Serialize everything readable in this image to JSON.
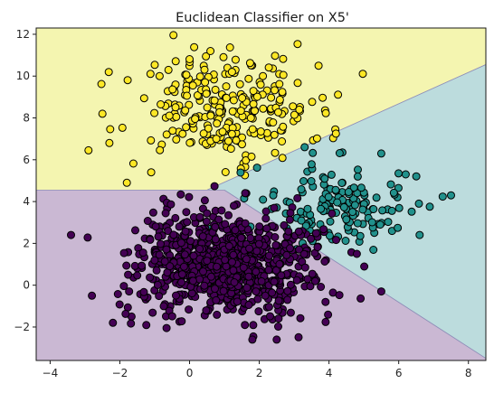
{
  "chart_data": {
    "type": "scatter",
    "title": "Euclidean Classifier on X5'",
    "xlabel": "",
    "ylabel": "",
    "xlim": [
      -4.4,
      8.5
    ],
    "ylim": [
      -3.6,
      12.3
    ],
    "xticks": [
      -4,
      -2,
      0,
      2,
      4,
      6,
      8
    ],
    "yticks": [
      -2,
      0,
      2,
      4,
      6,
      8,
      10,
      12
    ],
    "grid": false,
    "legend": "none",
    "regions": [
      {
        "class": "yellow",
        "color": "#f4f5b0",
        "polygon": [
          [
            -4.4,
            12.3
          ],
          [
            8.5,
            12.3
          ],
          [
            8.5,
            10.55
          ],
          [
            0.5,
            4.55
          ],
          [
            -4.4,
            4.55
          ]
        ]
      },
      {
        "class": "teal",
        "color": "#bcdcdd",
        "polygon": [
          [
            0.5,
            4.55
          ],
          [
            8.5,
            10.55
          ],
          [
            8.5,
            -3.5
          ],
          [
            1.0,
            4.55
          ]
        ]
      },
      {
        "class": "purple",
        "color": "#cab8d3",
        "polygon": [
          [
            -4.4,
            4.55
          ],
          [
            1.0,
            4.55
          ],
          [
            8.5,
            -3.5
          ],
          [
            8.5,
            -3.6
          ],
          [
            -4.4,
            -3.6
          ]
        ]
      }
    ],
    "boundary_color": "#8f8fb8",
    "series": [
      {
        "class": "yellow",
        "color": "#fde725",
        "center": [
          1.0,
          8.5
        ],
        "spread": [
          1.35,
          1.25
        ],
        "count": 250,
        "extremes": [
          [
            -2.9,
            6.45
          ],
          [
            -2.3,
            6.8
          ],
          [
            -1.8,
            4.9
          ],
          [
            3.7,
            10.5
          ],
          [
            0.6,
            11.2
          ],
          [
            4.2,
            7.25
          ],
          [
            -1.1,
            5.4
          ],
          [
            -2.5,
            8.2
          ]
        ]
      },
      {
        "class": "teal",
        "color": "#21918c",
        "center": [
          4.2,
          3.7
        ],
        "spread": [
          1.05,
          1.0
        ],
        "count": 150,
        "extremes": [
          [
            7.5,
            4.3
          ],
          [
            6.6,
            2.4
          ],
          [
            6.2,
            5.3
          ],
          [
            0.6,
            2.7
          ],
          [
            1.75,
            2.8
          ],
          [
            2.6,
            1.5
          ],
          [
            3.3,
            6.6
          ],
          [
            5.5,
            6.3
          ]
        ]
      },
      {
        "class": "purple",
        "color": "#440154",
        "center": [
          1.0,
          1.0
        ],
        "spread": [
          1.25,
          1.2
        ],
        "count": 900,
        "extremes": [
          [
            -3.4,
            2.4
          ],
          [
            -2.8,
            -0.5
          ],
          [
            -2.2,
            -1.8
          ],
          [
            2.5,
            -2.6
          ],
          [
            1.8,
            -2.6
          ],
          [
            5.5,
            -0.3
          ],
          [
            4.8,
            1.5
          ],
          [
            3.9,
            -0.8
          ]
        ]
      }
    ]
  }
}
